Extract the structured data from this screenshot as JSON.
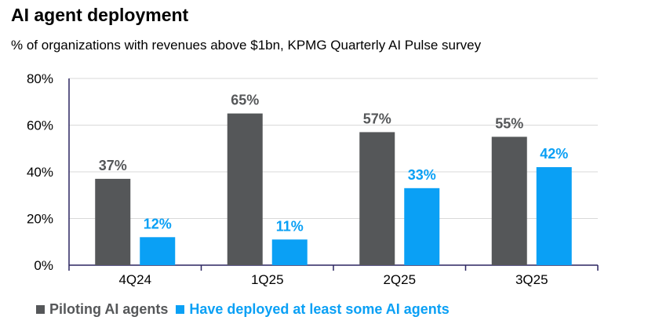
{
  "chart_data": {
    "type": "bar",
    "title": "AI agent deployment",
    "subtitle": "% of organizations with revenues above $1bn, KPMG Quarterly AI Pulse survey",
    "categories": [
      "4Q24",
      "1Q25",
      "2Q25",
      "3Q25"
    ],
    "series": [
      {
        "name": "Piloting AI agents",
        "values": [
          37,
          65,
          57,
          55
        ],
        "labels": [
          "37%",
          "65%",
          "57%",
          "55%"
        ],
        "color": "#555759"
      },
      {
        "name": "Have deployed at least some AI agents",
        "values": [
          12,
          11,
          33,
          42
        ],
        "labels": [
          "12%",
          "11%",
          "33%",
          "42%"
        ],
        "color": "#0aa0f5"
      }
    ],
    "ylim": [
      0,
      80
    ],
    "yticks": [
      0,
      20,
      40,
      60,
      80
    ],
    "ytick_labels": [
      "0%",
      "20%",
      "40%",
      "60%",
      "80%"
    ],
    "grid": true,
    "legend_position": "bottom-left"
  }
}
